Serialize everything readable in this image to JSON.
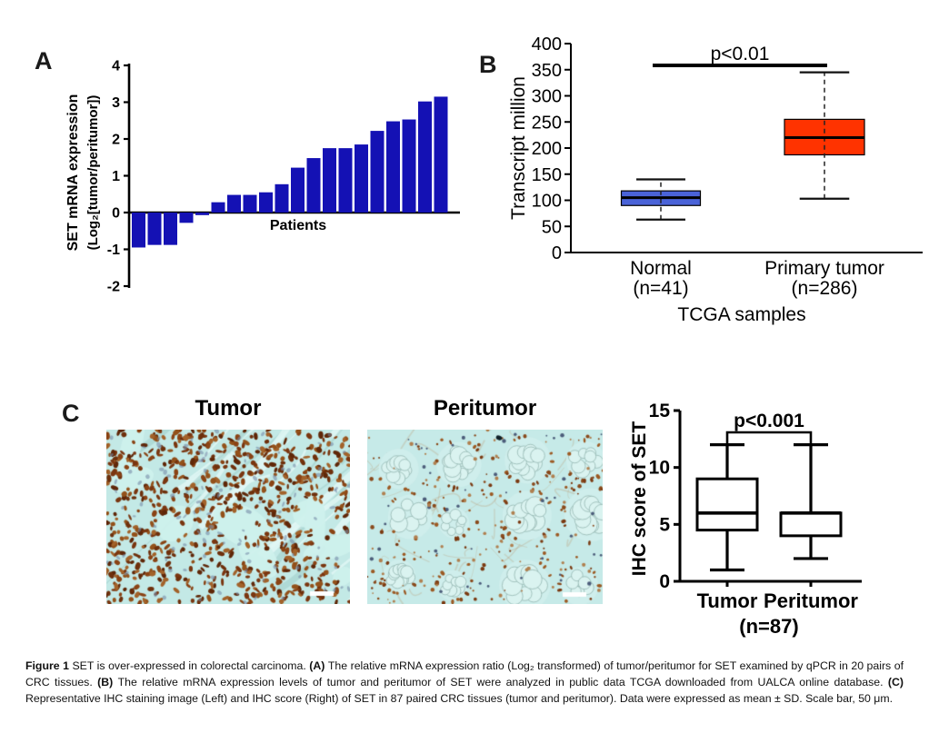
{
  "figure": {
    "panels": {
      "a": {
        "label": "A"
      },
      "b": {
        "label": "B"
      },
      "c": {
        "label": "C",
        "images": [
          {
            "title": "Tumor"
          },
          {
            "title": "Peritumor"
          }
        ]
      }
    },
    "caption": {
      "segments": [
        {
          "t": "Figure 1 ",
          "bold": true
        },
        {
          "t": "SET is over-expressed in colorectal carcinoma. ",
          "bold": false
        },
        {
          "t": "(A) ",
          "bold": true
        },
        {
          "t": "The relative mRNA expression ratio (Log₂ transformed) of tumor/peritumor for SET examined by qPCR in 20 pairs of CRC tissues. ",
          "bold": false
        },
        {
          "t": "(B) ",
          "bold": true
        },
        {
          "t": "The relative mRNA expression levels of tumor and peritumor of SET were analyzed in public data TCGA downloaded from UALCA online database. ",
          "bold": false
        },
        {
          "t": "(C) ",
          "bold": true
        },
        {
          "t": "Representative IHC staining image (Left) and IHC score (Right) of SET in 87 paired CRC tissues (tumor and peritumor). Data were expressed as mean ± SD. Scale bar, 50 μm.",
          "bold": false
        }
      ]
    }
  },
  "chart_data": [
    {
      "type": "bar",
      "panel": "A",
      "title": "",
      "xlabel": "Patients",
      "ylabel_lines": [
        "SET mRNA expression",
        "(Log₂[tumor/peritumor])"
      ],
      "ylim": [
        -2,
        4
      ],
      "yticks": [
        -2,
        -1,
        0,
        1,
        2,
        3,
        4
      ],
      "bar_color": "#1411b4",
      "categories_note": "20 CRC patient pairs, unlabeled on axis",
      "values": [
        -0.95,
        -0.88,
        -0.88,
        -0.28,
        -0.07,
        0.28,
        0.48,
        0.48,
        0.55,
        0.77,
        1.22,
        1.48,
        1.75,
        1.75,
        1.85,
        2.22,
        2.48,
        2.53,
        3.02,
        3.15
      ]
    },
    {
      "type": "box",
      "panel": "B",
      "ylabel": "Transcript million",
      "xlabel": "TCGA samples",
      "ylim": [
        0,
        400
      ],
      "yticks": [
        0,
        50,
        100,
        150,
        200,
        250,
        300,
        350,
        400
      ],
      "significance": {
        "label": "p<0.01"
      },
      "groups": [
        {
          "label": "Normal",
          "n_label": "(n=41)",
          "color": "#4a63d8",
          "whisker_low": 63,
          "q1": 90,
          "median": 105,
          "q3": 118,
          "whisker_high": 140
        },
        {
          "label": "Primary tumor",
          "n_label": "(n=286)",
          "color": "#ff3300",
          "whisker_low": 103,
          "q1": 187,
          "median": 220,
          "q3": 255,
          "whisker_high": 345
        }
      ]
    },
    {
      "type": "box",
      "panel": "C",
      "ylabel": "IHC score of SET",
      "xlabel": "(n=87)",
      "ylim": [
        0,
        15
      ],
      "yticks": [
        0,
        5,
        10,
        15
      ],
      "significance": {
        "label": "p<0.001"
      },
      "groups": [
        {
          "label": "Tumor",
          "color": "#ffffff",
          "whisker_low": 1,
          "q1": 4.5,
          "median": 6,
          "q3": 9,
          "whisker_high": 12
        },
        {
          "label": "Peritumor",
          "color": "#ffffff",
          "whisker_low": 2,
          "q1": 4,
          "median": 6,
          "q3": 6,
          "whisker_high": 12
        }
      ]
    }
  ]
}
